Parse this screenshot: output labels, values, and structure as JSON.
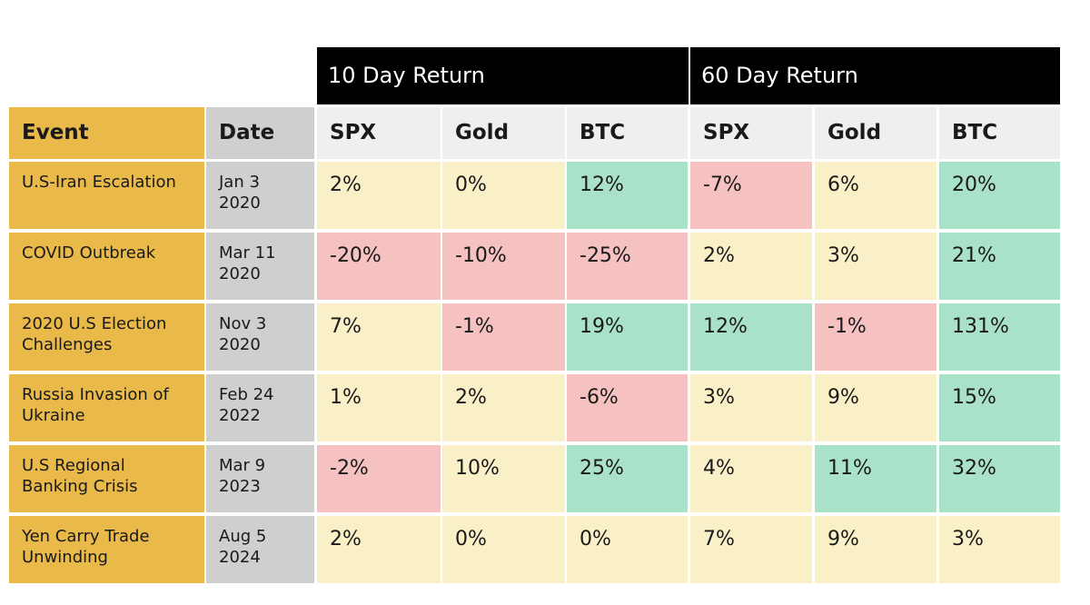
{
  "table": {
    "group_headers": [
      "10 Day Return",
      "60 Day Return"
    ],
    "headers": [
      "Event",
      "Date",
      "SPX",
      "Gold",
      "BTC",
      "SPX",
      "Gold",
      "BTC"
    ],
    "header_colors": [
      "#e9b949",
      "#cfcfcf",
      "#efefef",
      "#efefef",
      "#efefef",
      "#efefef",
      "#efefef",
      "#efefef"
    ],
    "event_color": "#e9b949",
    "date_color": "#cfcfcf",
    "rows": [
      [
        "U.S-Iran Escalation",
        "Jan 3\n2020",
        "2%",
        "0%",
        "12%",
        "-7%",
        "6%",
        "20%"
      ],
      [
        "COVID Outbreak",
        "Mar 11\n2020",
        "-20%",
        "-10%",
        "-25%",
        "2%",
        "3%",
        "21%"
      ],
      [
        "2020 U.S Election\nChallenges",
        "Nov 3\n2020",
        "7%",
        "-1%",
        "19%",
        "12%",
        "-1%",
        "131%"
      ],
      [
        "Russia Invasion of\nUkraine",
        "Feb 24\n2022",
        "1%",
        "2%",
        "-6%",
        "3%",
        "9%",
        "15%"
      ],
      [
        "U.S Regional\nBanking Crisis",
        "Mar 9\n2023",
        "-2%",
        "10%",
        "25%",
        "4%",
        "11%",
        "32%"
      ],
      [
        "Yen Carry Trade\nUnwinding",
        "Aug 5\n2024",
        "2%",
        "0%",
        "0%",
        "7%",
        "9%",
        "3%"
      ]
    ],
    "cell_colors": [
      [
        "#faf0c8",
        "#faf0c8",
        "#a9e2c9",
        "#f5c1c1",
        "#faf0c8",
        "#a9e2c9"
      ],
      [
        "#f5c1c1",
        "#f5c1c1",
        "#f5c1c1",
        "#faf0c8",
        "#faf0c8",
        "#a9e2c9"
      ],
      [
        "#faf0c8",
        "#f5c1c1",
        "#a9e2c9",
        "#a9e2c9",
        "#f5c1c1",
        "#a9e2c9"
      ],
      [
        "#faf0c8",
        "#faf0c8",
        "#f5c1c1",
        "#faf0c8",
        "#faf0c8",
        "#a9e2c9"
      ],
      [
        "#f5c1c1",
        "#faf0c8",
        "#a9e2c9",
        "#faf0c8",
        "#a9e2c9",
        "#a9e2c9"
      ],
      [
        "#faf0c8",
        "#faf0c8",
        "#faf0c8",
        "#faf0c8",
        "#faf0c8",
        "#faf0c8"
      ]
    ]
  }
}
